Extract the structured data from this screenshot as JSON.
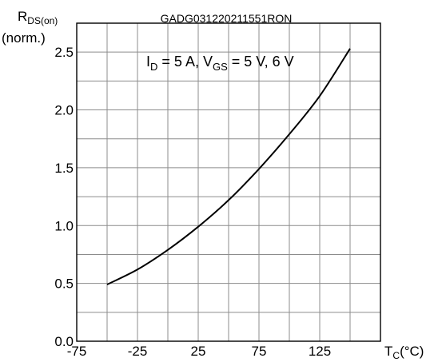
{
  "chart_data": {
    "type": "line",
    "code": "GADG031220211551RON",
    "ylabel_main": "R",
    "ylabel_sub": "DS(on)",
    "ylabel_line2": "(norm.)",
    "xlabel_main": "T",
    "xlabel_sub": "C",
    "xlabel_unit": "(°C)",
    "annotation": {
      "parts": [
        {
          "text": "I",
          "sub": false
        },
        {
          "text": "D",
          "sub": true
        },
        {
          "text": " = 5 A, V",
          "sub": false
        },
        {
          "text": "GS",
          "sub": true
        },
        {
          "text": " = 5 V, 6 V",
          "sub": false
        }
      ]
    },
    "xlim": [
      -75,
      175
    ],
    "ylim": [
      0.0,
      2.75
    ],
    "x_ticks": [
      "-75",
      "-25",
      "25",
      "75",
      "125"
    ],
    "x_tick_values": [
      -75,
      -25,
      25,
      75,
      125
    ],
    "y_ticks": [
      "0.0",
      "0.5",
      "1.0",
      "1.5",
      "2.0",
      "2.5"
    ],
    "y_tick_values": [
      0.0,
      0.5,
      1.0,
      1.5,
      2.0,
      2.5
    ],
    "grid": true,
    "series": [
      {
        "x": [
          -50,
          -25,
          0,
          25,
          50,
          75,
          100,
          125,
          150
        ],
        "y": [
          0.49,
          0.62,
          0.79,
          0.99,
          1.22,
          1.49,
          1.79,
          2.12,
          2.53
        ],
        "color": "#000000"
      }
    ]
  }
}
